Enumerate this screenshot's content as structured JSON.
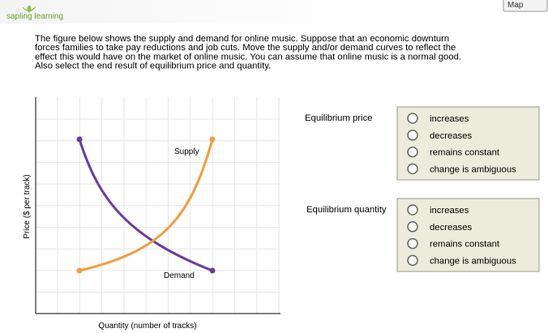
{
  "header": {
    "logo": "sapling learning",
    "map_button": "Map"
  },
  "question": {
    "lines": [
      "The figure below shows the supply and demand for online music. Suppose that an economic downturn",
      "forces families to take pay reductions and job cuts. Move the supply and/or demand curves to reflect the",
      "effect this would have on the market of online music. You can assume that online music is a normal good.",
      "Also select the end result of equilibrium price and quantity."
    ]
  },
  "graph": {
    "y_axis_label": "Price ($ per track)",
    "x_axis_label": "Quantity (number of tracks)",
    "supply_label": "Supply",
    "demand_label": "Demand"
  },
  "answers": [
    {
      "label": "Equilibrium price",
      "options": [
        "increases",
        "decreases",
        "remains constant",
        "change is ambiguous"
      ]
    },
    {
      "label": "Equilibrium quantity",
      "options": [
        "increases",
        "decreases",
        "remains constant",
        "change is ambiguous"
      ]
    }
  ]
}
